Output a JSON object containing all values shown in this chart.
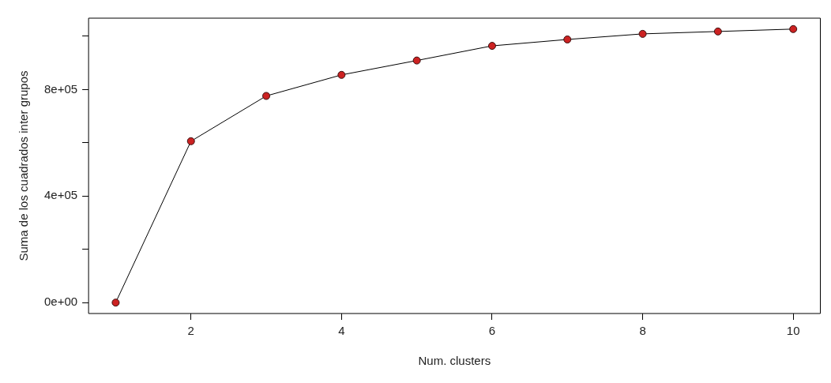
{
  "chart_data": {
    "type": "line",
    "xlabel": "Num. clusters",
    "ylabel": "Suma de los cuadrados inter grupos",
    "x": [
      1,
      2,
      3,
      4,
      5,
      6,
      7,
      8,
      9,
      10
    ],
    "series": [
      {
        "color": "#cc2222",
        "values": [
          0,
          606000,
          776000,
          855000,
          909000,
          964000,
          988000,
          1009000,
          1018000,
          1027000
        ]
      }
    ],
    "xlim": [
      0.64,
      10.36
    ],
    "ylim": [
      -41000,
      1068000
    ],
    "xticks": [
      2,
      4,
      6,
      8,
      10
    ],
    "yticks": [
      {
        "value": 0,
        "label": "0e+00"
      },
      {
        "value": 200000,
        "label": null
      },
      {
        "value": 400000,
        "label": "4e+05"
      },
      {
        "value": 600000,
        "label": null
      },
      {
        "value": 800000,
        "label": "8e+05"
      },
      {
        "value": 1000000,
        "label": null
      }
    ],
    "grid": false,
    "legend": false,
    "marker": "circle",
    "line_style": "solid"
  }
}
